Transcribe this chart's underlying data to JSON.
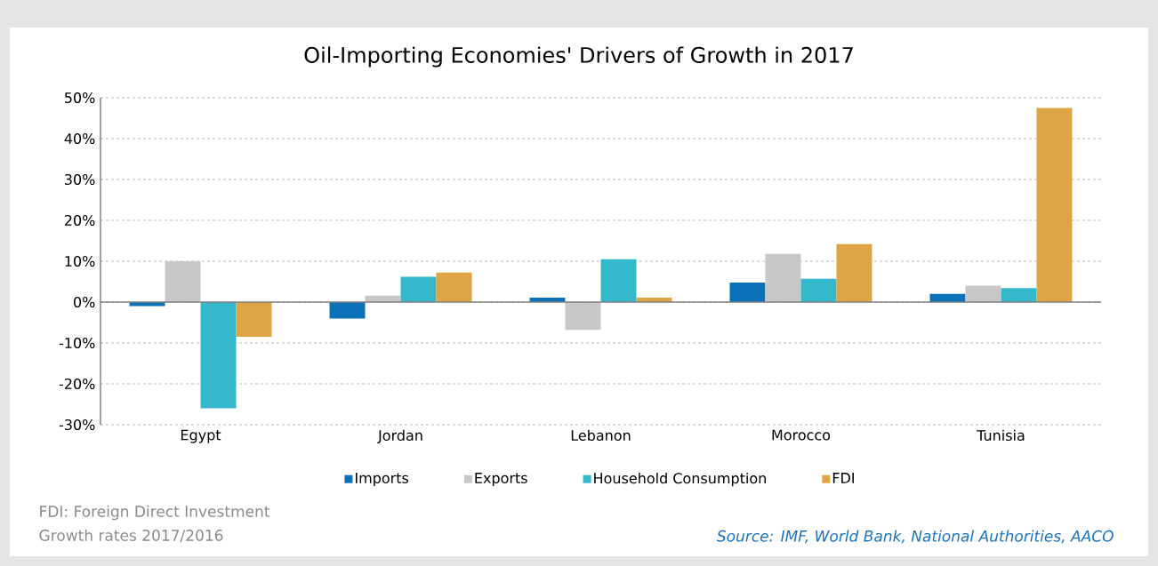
{
  "chart_data": {
    "type": "bar",
    "title": "Oil-Importing Economies' Drivers of Growth in 2017",
    "categories": [
      "Egypt",
      "Jordan",
      "Lebanon",
      "Morocco",
      "Tunisia"
    ],
    "series": [
      {
        "name": "Imports",
        "color": "#0b72b9",
        "values": [
          -1.0,
          -4.0,
          1.1,
          4.8,
          2.0
        ]
      },
      {
        "name": "Exports",
        "color": "#c8c8c8",
        "values": [
          10.0,
          1.6,
          -6.8,
          11.8,
          4.0
        ]
      },
      {
        "name": "Household Consumption",
        "color": "#35b8cb",
        "values": [
          -26.0,
          6.2,
          10.5,
          5.7,
          3.4
        ]
      },
      {
        "name": "FDI",
        "color": "#dfa544",
        "values": [
          -8.5,
          7.2,
          1.1,
          14.2,
          47.5
        ]
      }
    ],
    "ylim": [
      -30,
      50
    ],
    "yticks": [
      {
        "value": -30,
        "label": "-30%"
      },
      {
        "value": -20,
        "label": "-20%"
      },
      {
        "value": -10,
        "label": "-10%"
      },
      {
        "value": 0,
        "label": "0%"
      },
      {
        "value": 10,
        "label": "10%"
      },
      {
        "value": 20,
        "label": "20%"
      },
      {
        "value": 30,
        "label": "30%"
      },
      {
        "value": 40,
        "label": "40%"
      },
      {
        "value": 50,
        "label": "50%"
      }
    ],
    "grid": "y",
    "legend": "bottom",
    "annotations": [
      "FDI: Foreign Direct Investment",
      "Growth rates 2017/2016",
      "Source: IMF, World Bank, National Authorities, AACO"
    ]
  }
}
